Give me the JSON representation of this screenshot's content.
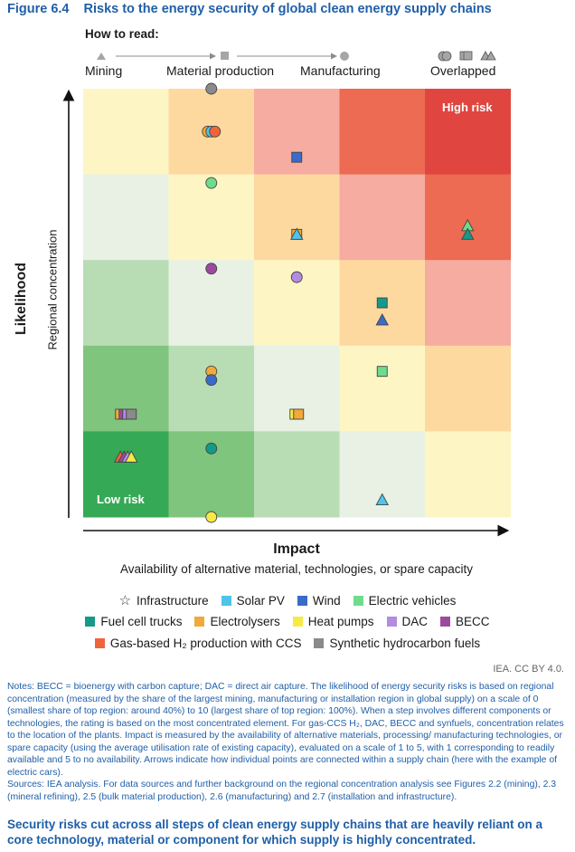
{
  "figure": {
    "number": "Figure 6.4",
    "title": "Risks to the energy security of global clean energy supply chains"
  },
  "how_to_read": {
    "heading": "How to read:",
    "steps": [
      "Mining",
      "Material production",
      "Manufacturing",
      "Overlapped"
    ]
  },
  "chart_data": {
    "type": "heatmap",
    "xlabel": "Impact",
    "xlabel_sub": "Availability of alternative material, technologies, or spare capacity",
    "ylabel": "Likelihood",
    "ylabel_sub": "Regional concentration",
    "grid_columns": 5,
    "grid_rows": 5,
    "cell_colors": [
      [
        "#fdf6c4",
        "#fdd9a0",
        "#f6aca0",
        "#ec6b52",
        "#e0463f"
      ],
      [
        "#e8f1e4",
        "#fdf6c4",
        "#fdd9a0",
        "#f6aca0",
        "#ec6b52"
      ],
      [
        "#b8ddb5",
        "#e8f1e4",
        "#fdf6c4",
        "#fdd9a0",
        "#f6aca0"
      ],
      [
        "#80c57e",
        "#b8ddb5",
        "#e8f1e4",
        "#fdf6c4",
        "#fdd9a0"
      ],
      [
        "#36a957",
        "#80c57e",
        "#b8ddb5",
        "#e8f1e4",
        "#fdf6c4"
      ]
    ],
    "corner_labels": {
      "top_right": "High risk",
      "bottom_left": "Low risk"
    },
    "points": [
      {
        "tech": "Synthetic hydrocarbon fuels",
        "shape": "circle",
        "x": 2.0,
        "y": 5.0
      },
      {
        "tech": "Electrolysers",
        "shape": "circle",
        "x": 2.0,
        "y": 4.5
      },
      {
        "tech": "Solar PV",
        "shape": "circle",
        "x": 2.0,
        "y": 4.5
      },
      {
        "tech": "Gas-based H2 production with CCS",
        "shape": "circle",
        "x": 2.0,
        "y": 4.5
      },
      {
        "tech": "Wind",
        "shape": "square",
        "x": 3.0,
        "y": 4.2
      },
      {
        "tech": "Electric vehicles",
        "shape": "circle",
        "x": 2.0,
        "y": 3.9
      },
      {
        "tech": "Electrolysers",
        "shape": "square",
        "x": 3.0,
        "y": 3.3
      },
      {
        "tech": "Solar PV",
        "shape": "triangle",
        "x": 3.0,
        "y": 3.3
      },
      {
        "tech": "Electric vehicles",
        "shape": "triangle",
        "x": 5.0,
        "y": 3.4
      },
      {
        "tech": "Fuel cell trucks",
        "shape": "triangle",
        "x": 5.0,
        "y": 3.3
      },
      {
        "tech": "BECC",
        "shape": "circle",
        "x": 2.0,
        "y": 2.9
      },
      {
        "tech": "DAC",
        "shape": "circle",
        "x": 3.0,
        "y": 2.8
      },
      {
        "tech": "Fuel cell trucks",
        "shape": "square",
        "x": 4.0,
        "y": 2.5
      },
      {
        "tech": "Wind",
        "shape": "triangle",
        "x": 4.0,
        "y": 2.3
      },
      {
        "tech": "Electrolysers",
        "shape": "circle",
        "x": 2.0,
        "y": 1.7
      },
      {
        "tech": "Wind",
        "shape": "circle",
        "x": 2.0,
        "y": 1.6
      },
      {
        "tech": "Electric vehicles",
        "shape": "square",
        "x": 4.0,
        "y": 1.7
      },
      {
        "tech": "Heat pumps",
        "shape": "square",
        "x": 3.0,
        "y": 1.2
      },
      {
        "tech": "Electrolysers",
        "shape": "square",
        "x": 3.0,
        "y": 1.2
      },
      {
        "tech": "Electrolysers",
        "shape": "square",
        "x": 1.0,
        "y": 1.2
      },
      {
        "tech": "BECC",
        "shape": "square",
        "x": 1.0,
        "y": 1.2
      },
      {
        "tech": "DAC",
        "shape": "square",
        "x": 1.0,
        "y": 1.2
      },
      {
        "tech": "Synthetic hydrocarbon fuels",
        "shape": "square",
        "x": 1.0,
        "y": 1.2
      },
      {
        "tech": "Gas-based H2 production with CCS",
        "shape": "triangle",
        "x": 1.0,
        "y": 0.7
      },
      {
        "tech": "BECC",
        "shape": "triangle",
        "x": 1.0,
        "y": 0.7
      },
      {
        "tech": "DAC",
        "shape": "triangle",
        "x": 1.0,
        "y": 0.7
      },
      {
        "tech": "Heat pumps",
        "shape": "triangle",
        "x": 1.0,
        "y": 0.7
      },
      {
        "tech": "Fuel cell trucks",
        "shape": "circle",
        "x": 2.0,
        "y": 0.8
      },
      {
        "tech": "Solar PV",
        "shape": "triangle",
        "x": 4.0,
        "y": 0.2
      },
      {
        "tech": "Heat pumps",
        "shape": "circle",
        "x": 2.0,
        "y": 0.0
      }
    ]
  },
  "legend": {
    "rows": [
      [
        {
          "label": "Infrastructure",
          "icon": "star-outline",
          "color": ""
        },
        {
          "label": "Solar PV",
          "icon": "square",
          "color": "#4fc3e8"
        },
        {
          "label": "Wind",
          "icon": "square",
          "color": "#3a6bc9"
        },
        {
          "label": "Electric vehicles",
          "icon": "square",
          "color": "#6fdc8c"
        }
      ],
      [
        {
          "label": "Fuel cell trucks",
          "icon": "square",
          "color": "#159988"
        },
        {
          "label": "Electrolysers",
          "icon": "square",
          "color": "#f0a93a"
        },
        {
          "label": "Heat pumps",
          "icon": "square",
          "color": "#f6ea45"
        },
        {
          "label": "DAC",
          "icon": "square",
          "color": "#b38be0"
        },
        {
          "label": "BECC",
          "icon": "square",
          "color": "#9b4a9e"
        }
      ],
      [
        {
          "label": "Gas-based H₂ production with CCS",
          "icon": "square",
          "color": "#f0643c"
        },
        {
          "label": "Synthetic hydrocarbon fuels",
          "icon": "square",
          "color": "#8a8a8a"
        }
      ]
    ]
  },
  "source_credit": "IEA. CC BY 4.0.",
  "notes": "Notes: BECC = bioenergy with carbon capture; DAC = direct air capture. The likelihood of energy security risks is based on regional concentration (measured by the share of the largest mining, manufacturing or installation region in global supply) on a scale of 0 (smallest share of top region: around 40%) to 10 (largest share of top region: 100%). When a step involves different components or technologies, the rating is based on the most concentrated element. For gas-CCS H₂, DAC, BECC and synfuels, concentration relates to the location of the plants. Impact is measured by the availability of alternative materials, processing/ manufacturing technologies, or spare capacity (using the average utilisation rate of existing capacity), evaluated on a scale of 1 to 5, with 1 corresponding to readily available and 5 to no availability. Arrows indicate how individual points are connected within a supply chain (here with the example of electric cars).",
  "sources": "Sources: IEA analysis. For data sources and further background on the regional concentration analysis see Figures 2.2 (mining), 2.3 (mineral refining), 2.5 (bulk material production), 2.6 (manufacturing) and 2.7 (installation and infrastructure).",
  "footer": "Security risks cut across all steps of clean energy supply chains that are heavily reliant on a core technology, material or component for which supply is highly concentrated.",
  "colors": {
    "Solar PV": "#4fc3e8",
    "Wind": "#3a6bc9",
    "Electric vehicles": "#6fdc8c",
    "Fuel cell trucks": "#159988",
    "Electrolysers": "#f0a93a",
    "Heat pumps": "#f6ea45",
    "DAC": "#b38be0",
    "BECC": "#9b4a9e",
    "Gas-based H2 production with CCS": "#f0643c",
    "Synthetic hydrocarbon fuels": "#8a8a8a",
    "title_blue": "#1f5fa8"
  }
}
